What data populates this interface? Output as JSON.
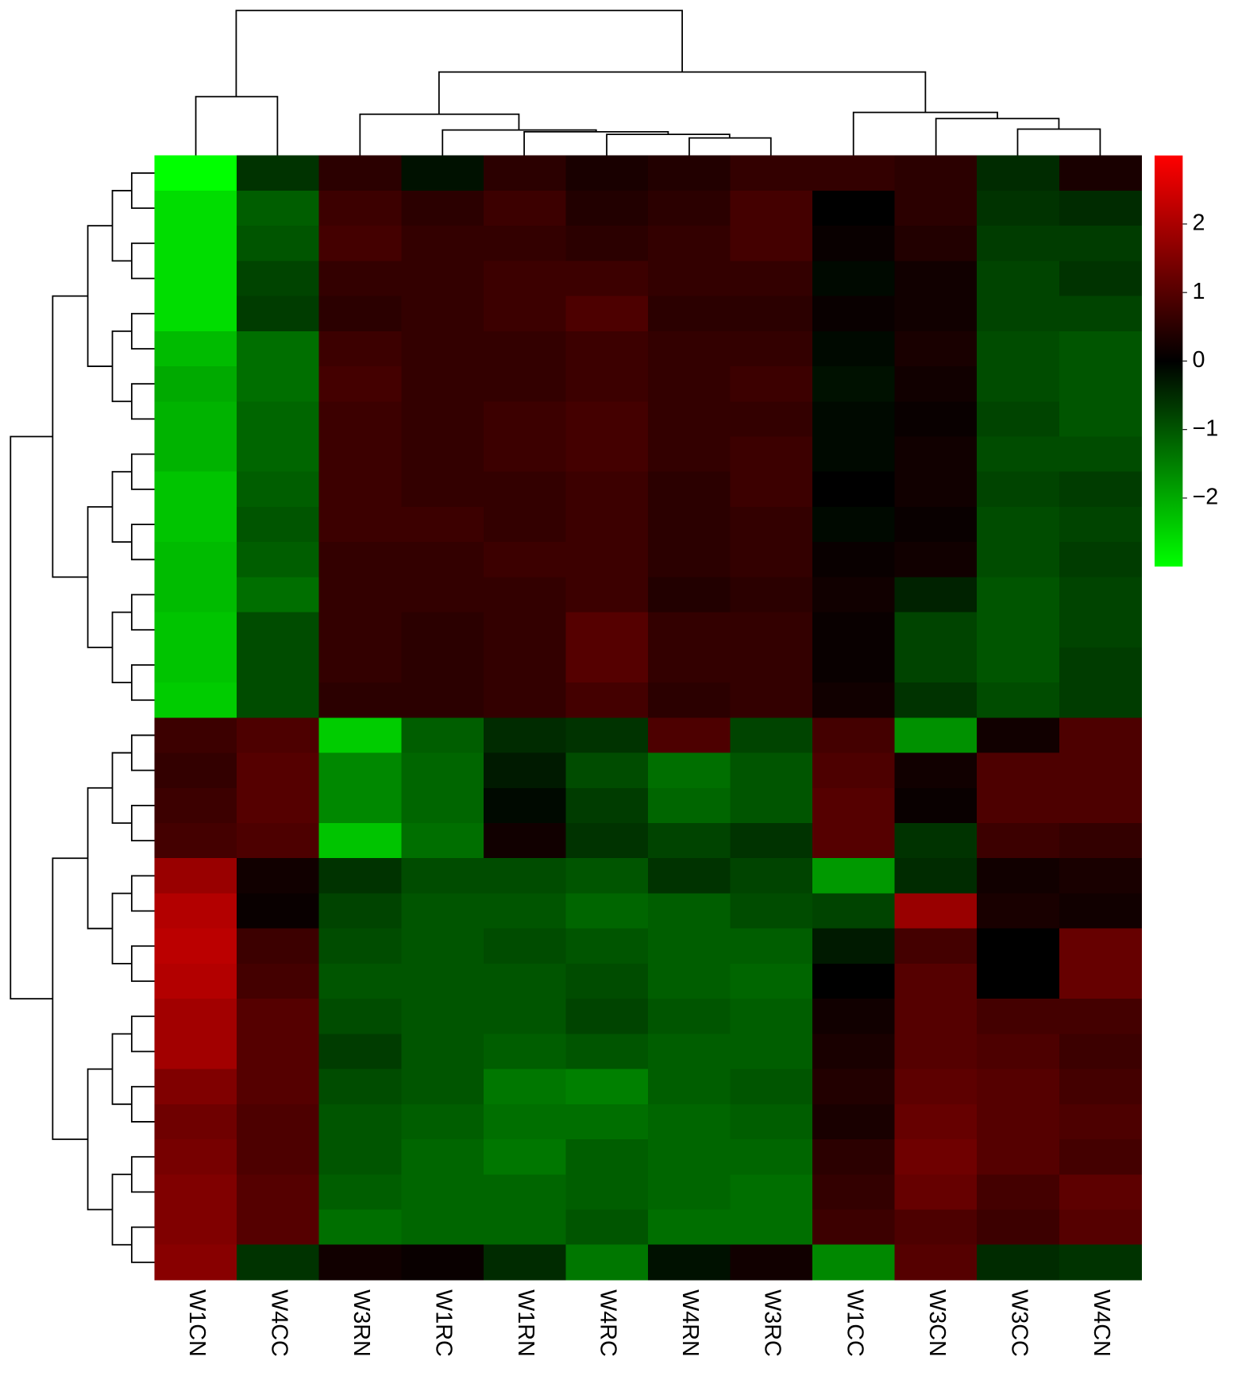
{
  "chart_data": {
    "type": "heatmap",
    "x": [
      "W1CN",
      "W4CC",
      "W3RN",
      "W1RC",
      "W1RN",
      "W4RC",
      "W4RN",
      "W3RC",
      "W1CC",
      "W3CN",
      "W3CC",
      "W4CN"
    ],
    "values": [
      [
        -3,
        -0.6,
        0.5,
        -0.2,
        0.5,
        0.3,
        0.4,
        0.6,
        0.6,
        0.5,
        -0.5,
        0.3
      ],
      [
        -2.6,
        -1.1,
        0.7,
        0.5,
        0.7,
        0.4,
        0.5,
        0.8,
        0,
        0.5,
        -0.6,
        -0.5
      ],
      [
        -2.6,
        -1.0,
        0.8,
        0.6,
        0.6,
        0.5,
        0.6,
        0.8,
        0.1,
        0.4,
        -0.7,
        -0.7
      ],
      [
        -2.6,
        -0.8,
        0.6,
        0.6,
        0.7,
        0.7,
        0.6,
        0.6,
        -0.1,
        0.2,
        -0.8,
        -0.6
      ],
      [
        -2.6,
        -0.7,
        0.5,
        0.6,
        0.7,
        0.9,
        0.5,
        0.5,
        0.1,
        0.2,
        -0.8,
        -0.8
      ],
      [
        -2.2,
        -1.3,
        0.7,
        0.6,
        0.6,
        0.7,
        0.6,
        0.6,
        -0.1,
        0.3,
        -0.9,
        -1.0
      ],
      [
        -2.0,
        -1.3,
        0.8,
        0.6,
        0.6,
        0.7,
        0.6,
        0.7,
        -0.2,
        0.2,
        -0.9,
        -1.0
      ],
      [
        -2.1,
        -1.2,
        0.7,
        0.6,
        0.7,
        0.8,
        0.6,
        0.6,
        -0.1,
        0.1,
        -0.8,
        -1.0
      ],
      [
        -2.1,
        -1.2,
        0.7,
        0.6,
        0.7,
        0.8,
        0.6,
        0.7,
        -0.1,
        0.2,
        -0.9,
        -0.9
      ],
      [
        -2.3,
        -1.1,
        0.7,
        0.6,
        0.6,
        0.7,
        0.5,
        0.7,
        0,
        0.2,
        -0.8,
        -0.7
      ],
      [
        -2.3,
        -1.0,
        0.7,
        0.7,
        0.6,
        0.7,
        0.5,
        0.6,
        -0.1,
        0.1,
        -0.9,
        -0.8
      ],
      [
        -2.2,
        -1.1,
        0.6,
        0.6,
        0.7,
        0.7,
        0.5,
        0.6,
        0.1,
        0.2,
        -0.9,
        -0.7
      ],
      [
        -2.2,
        -1.3,
        0.6,
        0.6,
        0.6,
        0.7,
        0.4,
        0.5,
        0.2,
        -0.4,
        -1.0,
        -0.8
      ],
      [
        -2.3,
        -0.9,
        0.6,
        0.5,
        0.6,
        1.0,
        0.6,
        0.6,
        0.1,
        -0.8,
        -1.0,
        -0.8
      ],
      [
        -2.3,
        -0.9,
        0.6,
        0.5,
        0.6,
        1.0,
        0.6,
        0.6,
        0.1,
        -0.8,
        -1.0,
        -0.7
      ],
      [
        -2.4,
        -0.9,
        0.5,
        0.5,
        0.6,
        0.8,
        0.5,
        0.6,
        0.2,
        -0.6,
        -0.9,
        -0.7
      ],
      [
        0.7,
        0.9,
        -2.4,
        -1.1,
        -0.5,
        -0.6,
        0.9,
        -0.8,
        0.8,
        -1.7,
        0.2,
        0.9
      ],
      [
        0.6,
        1.0,
        -1.6,
        -1.2,
        -0.3,
        -0.9,
        -1.3,
        -1.0,
        0.9,
        0.2,
        0.9,
        0.9
      ],
      [
        0.7,
        1.0,
        -1.6,
        -1.2,
        -0.1,
        -0.7,
        -1.2,
        -1.0,
        1.0,
        0.1,
        0.9,
        0.9
      ],
      [
        0.8,
        0.9,
        -2.3,
        -1.3,
        0.2,
        -0.6,
        -0.8,
        -0.6,
        1.0,
        -0.6,
        0.7,
        0.6
      ],
      [
        1.8,
        0.2,
        -0.6,
        -0.9,
        -0.9,
        -1.0,
        -0.6,
        -0.8,
        -1.8,
        -0.5,
        0.2,
        0.3
      ],
      [
        2.1,
        0.1,
        -0.8,
        -1.0,
        -1.0,
        -1.2,
        -1.1,
        -0.9,
        -0.8,
        1.8,
        0.3,
        0.2
      ],
      [
        2.2,
        0.7,
        -0.9,
        -1.0,
        -0.9,
        -1.0,
        -1.1,
        -1.1,
        -0.3,
        0.8,
        0,
        1.2
      ],
      [
        2.1,
        0.8,
        -1.0,
        -1.0,
        -1.0,
        -0.9,
        -1.1,
        -1.2,
        0,
        1.0,
        0,
        1.2
      ],
      [
        1.9,
        1.0,
        -0.9,
        -1.0,
        -1.0,
        -0.8,
        -1.0,
        -1.1,
        0.2,
        1.0,
        0.8,
        0.8
      ],
      [
        1.9,
        1.0,
        -0.7,
        -1.0,
        -1.1,
        -1.0,
        -1.1,
        -1.1,
        0.3,
        1.0,
        0.9,
        0.7
      ],
      [
        1.5,
        1.0,
        -0.9,
        -1.0,
        -1.4,
        -1.5,
        -1.1,
        -1.0,
        0.4,
        1.1,
        1.0,
        0.8
      ],
      [
        1.3,
        0.9,
        -1.0,
        -1.1,
        -1.3,
        -1.3,
        -1.2,
        -1.1,
        0.3,
        1.2,
        1.0,
        0.9
      ],
      [
        1.4,
        0.9,
        -1.0,
        -1.2,
        -1.4,
        -1.1,
        -1.2,
        -1.2,
        0.5,
        1.3,
        1.0,
        0.8
      ],
      [
        1.5,
        1.0,
        -1.1,
        -1.2,
        -1.2,
        -1.1,
        -1.2,
        -1.3,
        0.6,
        1.2,
        0.8,
        1.1
      ],
      [
        1.5,
        1.0,
        -1.3,
        -1.2,
        -1.2,
        -1.0,
        -1.3,
        -1.3,
        0.7,
        0.9,
        0.7,
        1.0
      ],
      [
        1.6,
        -0.6,
        0.2,
        0.1,
        -0.5,
        -1.4,
        -0.2,
        0.2,
        -1.6,
        1.0,
        -0.5,
        -0.6
      ]
    ],
    "clim": [
      -3,
      3
    ],
    "cticks": [
      {
        "value": -2,
        "label": "−2"
      },
      {
        "value": -1,
        "label": "−1"
      },
      0,
      1,
      2
    ],
    "colors": [
      "#00ff00",
      "#000000",
      "#ff0000"
    ]
  }
}
